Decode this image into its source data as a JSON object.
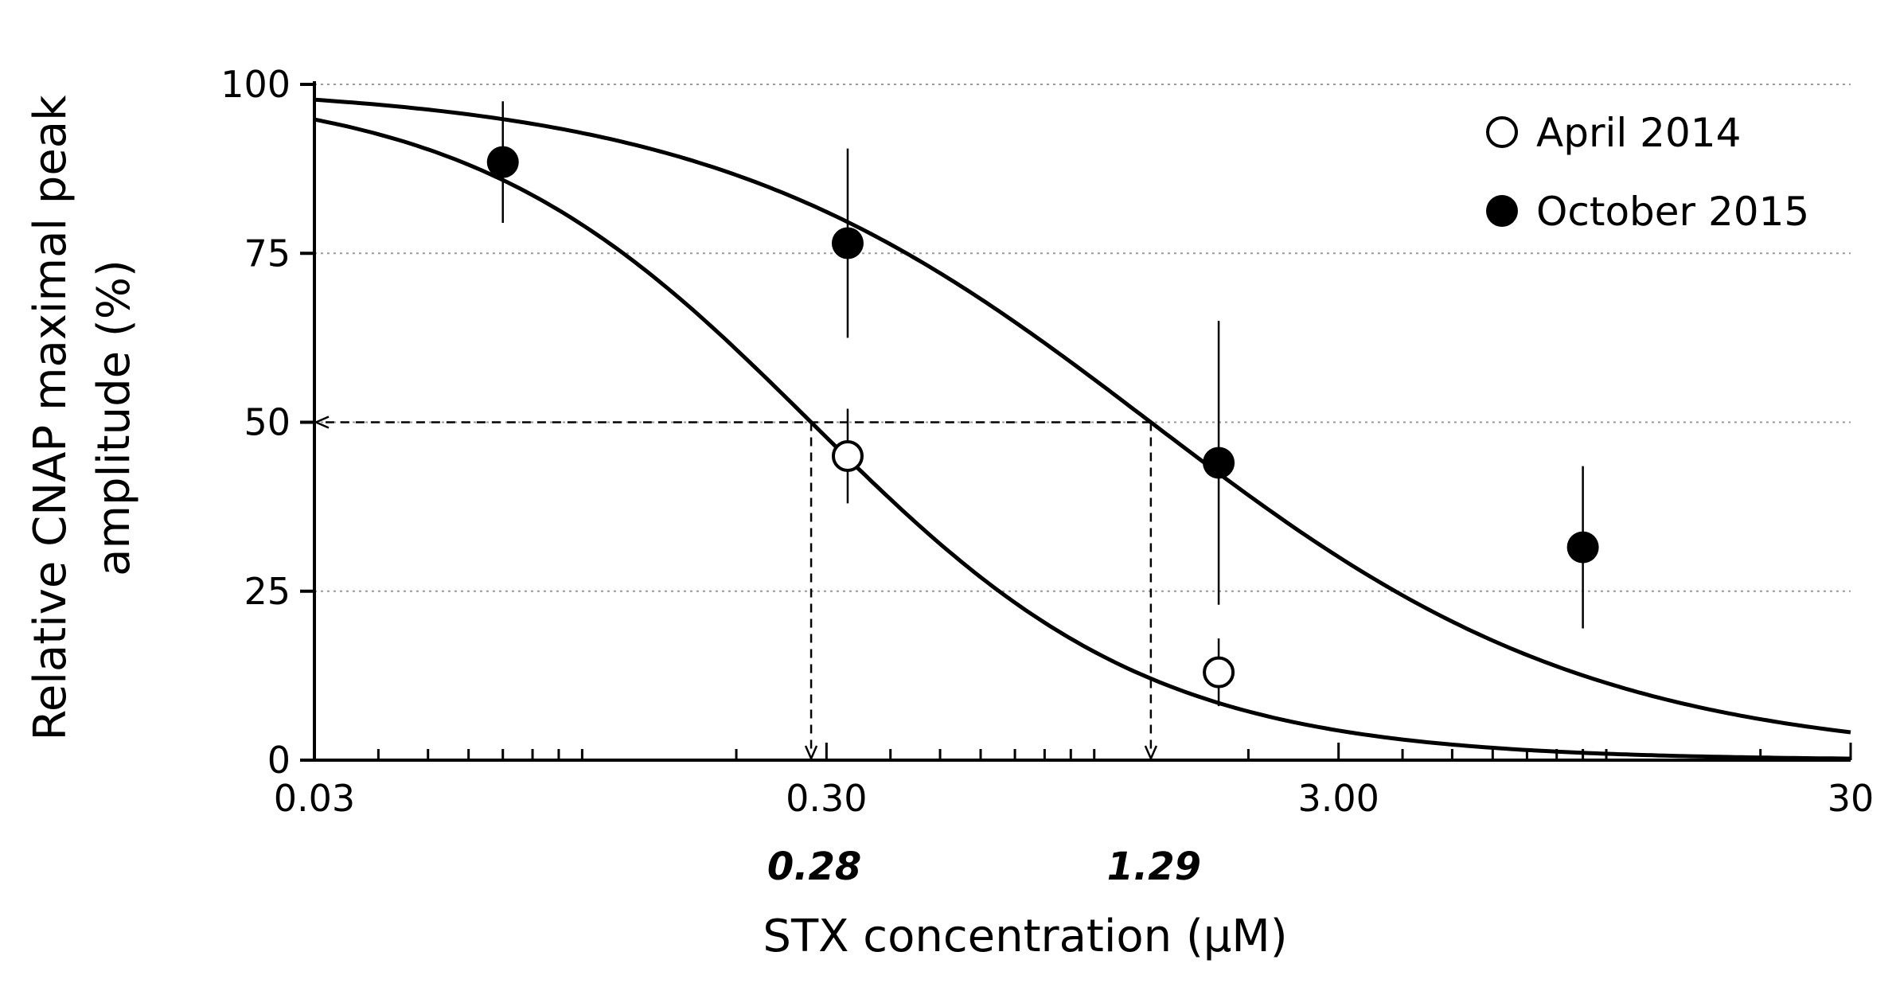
{
  "chart_data": {
    "type": "scatter",
    "title": "",
    "xlabel": "STX concentration (μM)",
    "ylabel_lines": [
      "Relative CNAP maximal peak",
      "amplitude (%)"
    ],
    "x_scale": "log",
    "xlim": [
      0.03,
      30
    ],
    "ylim": [
      0,
      100
    ],
    "x_ticks": [
      {
        "value": 0.03,
        "label": "0.03"
      },
      {
        "value": 0.3,
        "label": "0.30"
      },
      {
        "value": 3,
        "label": "3.00"
      },
      {
        "value": 30,
        "label": "30"
      }
    ],
    "y_ticks": [
      {
        "value": 0,
        "label": "0"
      },
      {
        "value": 25,
        "label": "25"
      },
      {
        "value": 50,
        "label": "50"
      },
      {
        "value": 75,
        "label": "75"
      },
      {
        "value": 100,
        "label": "100"
      }
    ],
    "grid": "horizontal dotted",
    "legend_position": "top-right",
    "series": [
      {
        "name": "April 2014",
        "marker": "open-circle",
        "points": [
          {
            "x": 0.33,
            "y": 45,
            "err": 7
          },
          {
            "x": 1.75,
            "y": 13,
            "err": 5
          }
        ],
        "fit": {
          "ic50": 0.28,
          "hill": 1.3
        }
      },
      {
        "name": "October 2015",
        "marker": "filled-circle",
        "points": [
          {
            "x": 0.07,
            "y": 88.5,
            "err": 9
          },
          {
            "x": 0.33,
            "y": 76.5,
            "err": 14
          },
          {
            "x": 1.75,
            "y": 44,
            "err": 21
          },
          {
            "x": 9.0,
            "y": 31.5,
            "err": 12
          }
        ],
        "fit": {
          "ic50": 1.29,
          "hill": 1.0
        }
      }
    ],
    "ic50_markers": [
      {
        "value": 0.28,
        "label": "0.28"
      },
      {
        "value": 1.29,
        "label": "1.29"
      }
    ],
    "ic50_level": 50
  }
}
